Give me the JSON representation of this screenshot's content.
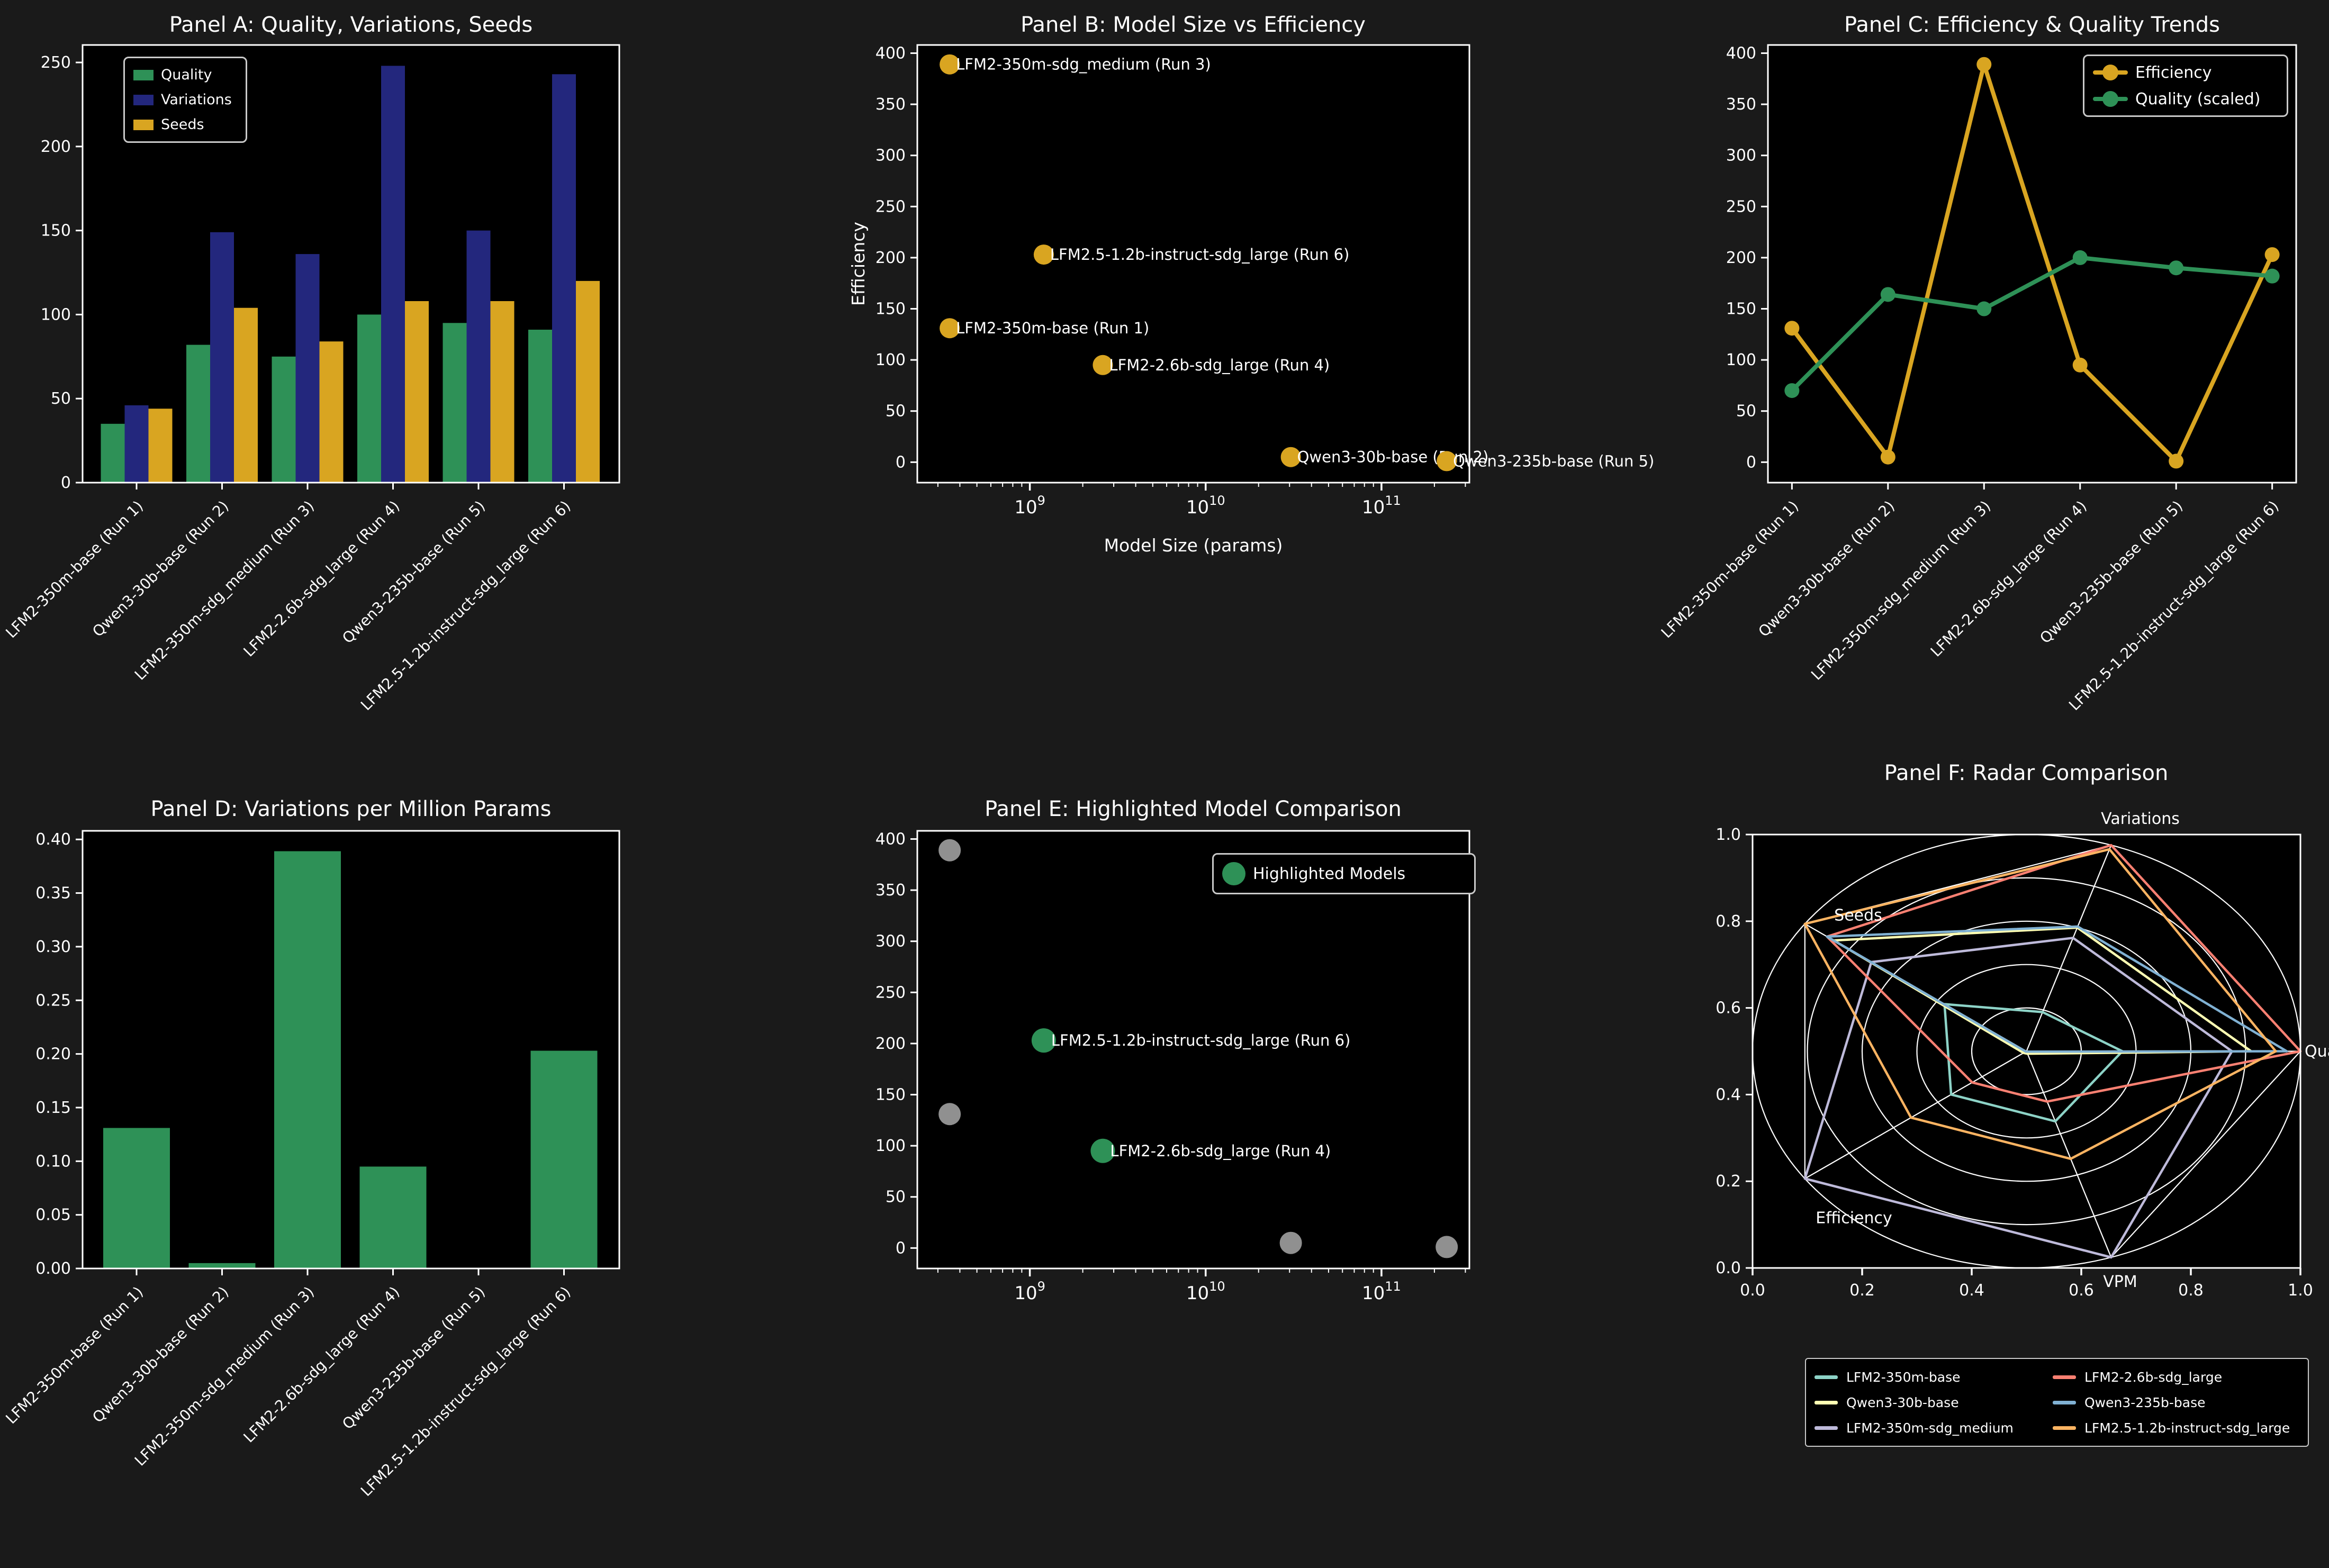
{
  "figure": {
    "background": "#1a1a1a",
    "axes_background": "#000000",
    "text_color": "#ffffff",
    "spine_color": "#ffffff"
  },
  "models": [
    "LFM2-350m-base (Run 1)",
    "Qwen3-30b-base (Run 2)",
    "LFM2-350m-sdg_medium (Run 3)",
    "LFM2-2.6b-sdg_large (Run 4)",
    "Qwen3-235b-base (Run 5)",
    "LFM2.5-1.2b-instruct-sdg_large (Run 6)"
  ],
  "chart_data": [
    {
      "panel": "A",
      "type": "bar",
      "title": "Panel A: Quality, Variations, Seeds",
      "categories": [
        "LFM2-350m-base (Run 1)",
        "Qwen3-30b-base (Run 2)",
        "LFM2-350m-sdg_medium (Run 3)",
        "LFM2-2.6b-sdg_large (Run 4)",
        "Qwen3-235b-base (Run 5)",
        "LFM2.5-1.2b-instruct-sdg_large (Run 6)"
      ],
      "series": [
        {
          "name": "Quality",
          "color": "#2e9157",
          "values": [
            35,
            82,
            75,
            100,
            95,
            91
          ]
        },
        {
          "name": "Variations",
          "color": "#23277d",
          "values": [
            46,
            149,
            136,
            248,
            150,
            243
          ]
        },
        {
          "name": "Seeds",
          "color": "#d9a521",
          "values": [
            44,
            104,
            84,
            108,
            108,
            120
          ]
        }
      ],
      "ylim": [
        0,
        260.4
      ],
      "yticks": [
        0,
        50,
        100,
        150,
        200,
        250
      ],
      "legend_position": "upper left"
    },
    {
      "panel": "B",
      "type": "scatter",
      "title": "Panel B: Model Size vs Efficiency",
      "xlabel": "Model Size (params)",
      "ylabel": "Efficiency",
      "xscale": "log",
      "marker_color": "#d9a521",
      "points": [
        {
          "label": "LFM2-350m-base (Run 1)",
          "x": 350000000,
          "y": 131
        },
        {
          "label": "Qwen3-30b-base (Run 2)",
          "x": 30500000000,
          "y": 5
        },
        {
          "label": "LFM2-350m-sdg_medium (Run 3)",
          "x": 350000000,
          "y": 389
        },
        {
          "label": "LFM2-2.6b-sdg_large (Run 4)",
          "x": 2600000000,
          "y": 95
        },
        {
          "label": "Qwen3-235b-base (Run 5)",
          "x": 235000000000,
          "y": 1
        },
        {
          "label": "LFM2.5-1.2b-instruct-sdg_large (Run 6)",
          "x": 1200000000,
          "y": 203
        }
      ],
      "ylim": [
        -20,
        408
      ],
      "yticks": [
        0,
        50,
        100,
        150,
        200,
        250,
        300,
        350,
        400
      ],
      "xticks": [
        1000000000,
        10000000000,
        100000000000
      ]
    },
    {
      "panel": "C",
      "type": "line",
      "title": "Panel C: Efficiency & Quality Trends",
      "categories": [
        "LFM2-350m-base (Run 1)",
        "Qwen3-30b-base (Run 2)",
        "LFM2-350m-sdg_medium (Run 3)",
        "LFM2-2.6b-sdg_large (Run 4)",
        "Qwen3-235b-base (Run 5)",
        "LFM2.5-1.2b-instruct-sdg_large (Run 6)"
      ],
      "series": [
        {
          "name": "Efficiency",
          "color": "#d9a521",
          "values": [
            131,
            5,
            389,
            95,
            1,
            203
          ]
        },
        {
          "name": "Quality (scaled)",
          "color": "#2e9157",
          "values": [
            70,
            164,
            150,
            200,
            190,
            182
          ]
        }
      ],
      "ylim": [
        -20,
        408
      ],
      "yticks": [
        0,
        50,
        100,
        150,
        200,
        250,
        300,
        350,
        400
      ],
      "legend_position": "upper right"
    },
    {
      "panel": "D",
      "type": "bar",
      "title": "Panel D: Variations per Million Params",
      "categories": [
        "LFM2-350m-base (Run 1)",
        "Qwen3-30b-base (Run 2)",
        "LFM2-350m-sdg_medium (Run 3)",
        "LFM2-2.6b-sdg_large (Run 4)",
        "Qwen3-235b-base (Run 5)",
        "LFM2.5-1.2b-instruct-sdg_large (Run 6)"
      ],
      "series": [
        {
          "name": "VPM",
          "color": "#2e9157",
          "values": [
            0.131,
            0.005,
            0.389,
            0.095,
            0.0006,
            0.203
          ]
        }
      ],
      "ylim": [
        0,
        0.408
      ],
      "yticks": [
        0.0,
        0.05,
        0.1,
        0.15,
        0.2,
        0.25,
        0.3,
        0.35,
        0.4
      ]
    },
    {
      "panel": "E",
      "type": "scatter",
      "title": "Panel E: Highlighted Model Comparison",
      "xscale": "log",
      "legend_label": "Highlighted Models",
      "base_color": "#909090",
      "highlight_color": "#2e9157",
      "points": [
        {
          "label": "",
          "x": 350000000,
          "y": 389,
          "highlighted": false
        },
        {
          "label": "",
          "x": 350000000,
          "y": 131,
          "highlighted": false
        },
        {
          "label": "",
          "x": 30500000000,
          "y": 5,
          "highlighted": false
        },
        {
          "label": "",
          "x": 235000000000,
          "y": 1,
          "highlighted": false
        },
        {
          "label": "LFM2.5-1.2b-instruct-sdg_large (Run 6)",
          "x": 1200000000,
          "y": 203,
          "highlighted": true
        },
        {
          "label": "LFM2-2.6b-sdg_large (Run 4)",
          "x": 2600000000,
          "y": 95,
          "highlighted": true
        }
      ],
      "ylim": [
        -20,
        408
      ],
      "yticks": [
        0,
        50,
        100,
        150,
        200,
        250,
        300,
        350,
        400
      ],
      "xticks": [
        1000000000,
        10000000000,
        100000000000
      ]
    },
    {
      "panel": "F",
      "type": "radar",
      "title": "Panel F: Radar Comparison",
      "metrics": [
        "Quality",
        "Variations",
        "Seeds",
        "Efficiency",
        "VPM"
      ],
      "axis_ticks": [
        0.0,
        0.2,
        0.4,
        0.6,
        0.8,
        1.0
      ],
      "ring_levels": [
        0.2,
        0.4,
        0.6,
        0.8,
        1.0
      ],
      "series": [
        {
          "name": "LFM2-350m-base",
          "color": "#8dd3c7",
          "values": [
            0.35,
            0.19,
            0.37,
            0.34,
            0.34
          ]
        },
        {
          "name": "Qwen3-30b-base",
          "color": "#ffffb3",
          "values": [
            0.82,
            0.6,
            0.87,
            0.013,
            0.012
          ]
        },
        {
          "name": "LFM2-350m-sdg_medium",
          "color": "#bebada",
          "values": [
            0.75,
            0.55,
            0.7,
            1.0,
            1.0
          ]
        },
        {
          "name": "LFM2-2.6b-sdg_large",
          "color": "#fb8072",
          "values": [
            1.0,
            1.0,
            0.9,
            0.245,
            0.244
          ]
        },
        {
          "name": "Qwen3-235b-base",
          "color": "#80b1d3",
          "values": [
            0.95,
            0.605,
            0.9,
            0.003,
            0.002
          ]
        },
        {
          "name": "LFM2.5-1.2b-instruct-sdg_large",
          "color": "#fdb462",
          "values": [
            0.91,
            0.98,
            1.0,
            0.521,
            0.522
          ]
        }
      ]
    }
  ]
}
